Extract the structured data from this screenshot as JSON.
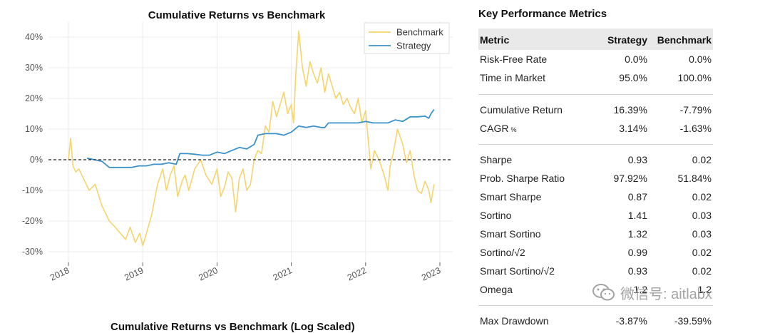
{
  "chart_data": {
    "type": "line",
    "title": "Cumulative Returns vs Benchmark",
    "xlabel": "",
    "ylabel": "",
    "x_ticks": [
      "2018",
      "2019",
      "2020",
      "2021",
      "2022",
      "2023"
    ],
    "y_ticks": [
      "40%",
      "30%",
      "20%",
      "10%",
      "0%",
      "-10%",
      "-20%",
      "-30%"
    ],
    "xlim": [
      2018.0,
      2023.0
    ],
    "ylim": [
      -30,
      45
    ],
    "grid": true,
    "legend_position": "top-right",
    "baseline": 0,
    "series": [
      {
        "name": "Benchmark",
        "color": "#f6d46c",
        "x": [
          2018.0,
          2018.03,
          2018.06,
          2018.1,
          2018.14,
          2018.2,
          2018.28,
          2018.36,
          2018.45,
          2018.55,
          2018.63,
          2018.7,
          2018.77,
          2018.83,
          2018.9,
          2018.96,
          2019.0,
          2019.05,
          2019.12,
          2019.2,
          2019.27,
          2019.32,
          2019.37,
          2019.42,
          2019.47,
          2019.53,
          2019.57,
          2019.62,
          2019.7,
          2019.78,
          2019.85,
          2019.93,
          2020.0,
          2020.05,
          2020.1,
          2020.15,
          2020.2,
          2020.25,
          2020.3,
          2020.35,
          2020.4,
          2020.45,
          2020.5,
          2020.55,
          2020.6,
          2020.65,
          2020.7,
          2020.75,
          2020.8,
          2020.85,
          2020.9,
          2020.95,
          2021.0,
          2021.03,
          2021.06,
          2021.1,
          2021.15,
          2021.2,
          2021.25,
          2021.3,
          2021.35,
          2021.4,
          2021.45,
          2021.5,
          2021.55,
          2021.6,
          2021.65,
          2021.7,
          2021.75,
          2021.8,
          2021.85,
          2021.9,
          2021.95,
          2022.0,
          2022.03,
          2022.07,
          2022.12,
          2022.18,
          2022.25,
          2022.3,
          2022.33,
          2022.37,
          2022.43,
          2022.5,
          2022.55,
          2022.6,
          2022.65,
          2022.7,
          2022.75,
          2022.8,
          2022.85,
          2022.88,
          2022.92
        ],
        "values": [
          0,
          7,
          -2,
          -4,
          -3,
          -6,
          -10,
          -8,
          -15,
          -20,
          -22,
          -24,
          -26,
          -22,
          -27,
          -24,
          -28,
          -24,
          -18,
          -8,
          -3,
          -10,
          -5,
          -2,
          -12,
          -7,
          -5,
          -10,
          -3,
          0,
          -5,
          -8,
          -3,
          -12,
          -9,
          -4,
          -6,
          -17,
          -6,
          -3,
          -10,
          -8,
          0,
          3,
          2,
          11,
          9,
          19,
          14,
          18,
          22,
          15,
          18,
          12,
          28,
          42,
          30,
          24,
          32,
          28,
          25,
          30,
          22,
          28,
          24,
          20,
          22,
          18,
          20,
          17,
          15,
          20,
          12,
          16,
          8,
          -3,
          3,
          0,
          -5,
          -10,
          -2,
          2,
          10,
          5,
          -1,
          3,
          -5,
          -10,
          -11,
          -7,
          -10,
          -14,
          -8
        ]
      },
      {
        "name": "Strategy",
        "color": "#3b91c9",
        "x": [
          2018.25,
          2018.35,
          2018.45,
          2018.55,
          2018.65,
          2018.75,
          2018.85,
          2018.95,
          2019.05,
          2019.15,
          2019.25,
          2019.35,
          2019.45,
          2019.5,
          2019.6,
          2019.7,
          2019.8,
          2019.9,
          2020.0,
          2020.1,
          2020.2,
          2020.3,
          2020.4,
          2020.5,
          2020.55,
          2020.65,
          2020.7,
          2020.8,
          2020.9,
          2021.0,
          2021.1,
          2021.2,
          2021.3,
          2021.4,
          2021.45,
          2021.5,
          2021.6,
          2021.7,
          2021.8,
          2021.9,
          2022.0,
          2022.1,
          2022.2,
          2022.3,
          2022.4,
          2022.5,
          2022.6,
          2022.7,
          2022.8,
          2022.85,
          2022.88,
          2022.92
        ],
        "values": [
          0.5,
          0,
          -0.5,
          -2.5,
          -2.5,
          -2.5,
          -2.5,
          -2,
          -2,
          -1.5,
          -1.5,
          -1,
          -1.5,
          2,
          2,
          1.8,
          1.5,
          1.5,
          2.5,
          2,
          3,
          4,
          3.5,
          5,
          8,
          8.5,
          8.5,
          8.5,
          8,
          9,
          11,
          10.5,
          11,
          10.5,
          10.5,
          12,
          12,
          12,
          12,
          12,
          12.5,
          12,
          12,
          12,
          13,
          12.5,
          14,
          14,
          14.2,
          13.5,
          15,
          16.39
        ]
      }
    ]
  },
  "metrics": {
    "title": "Key Performance Metrics",
    "headers": {
      "metric": "Metric",
      "strategy": "Strategy",
      "benchmark": "Benchmark"
    },
    "rows": [
      {
        "name": "Risk-Free Rate",
        "strategy": "0.0%",
        "benchmark": "0.0%"
      },
      {
        "name": "Time in Market",
        "strategy": "95.0%",
        "benchmark": "100.0%"
      },
      {
        "name": "Cumulative Return",
        "strategy": "16.39%",
        "benchmark": "-7.79%"
      },
      {
        "name": "CAGR",
        "unit": "%",
        "strategy": "3.14%",
        "benchmark": "-1.63%"
      },
      {
        "name": "Sharpe",
        "strategy": "0.93",
        "benchmark": "0.02"
      },
      {
        "name": "Prob. Sharpe Ratio",
        "strategy": "97.92%",
        "benchmark": "51.84%"
      },
      {
        "name": "Smart Sharpe",
        "strategy": "0.87",
        "benchmark": "0.02"
      },
      {
        "name": "Sortino",
        "strategy": "1.41",
        "benchmark": "0.03"
      },
      {
        "name": "Smart Sortino",
        "strategy": "1.32",
        "benchmark": "0.03"
      },
      {
        "name": "Sortino/√2",
        "strategy": "0.99",
        "benchmark": "0.02"
      },
      {
        "name": "Smart Sortino/√2",
        "strategy": "0.93",
        "benchmark": "0.02"
      },
      {
        "name": "Omega",
        "strategy": "1.2",
        "benchmark": "1.2"
      },
      {
        "name": "Max Drawdown",
        "strategy": "-3.87%",
        "benchmark": "-39.59%"
      }
    ]
  },
  "watermark": {
    "text": "微信号: aitlabx",
    "icon": "wechat-icon"
  },
  "bottom_chart": {
    "title": "Cumulative Returns vs Benchmark (Log Scaled)"
  }
}
